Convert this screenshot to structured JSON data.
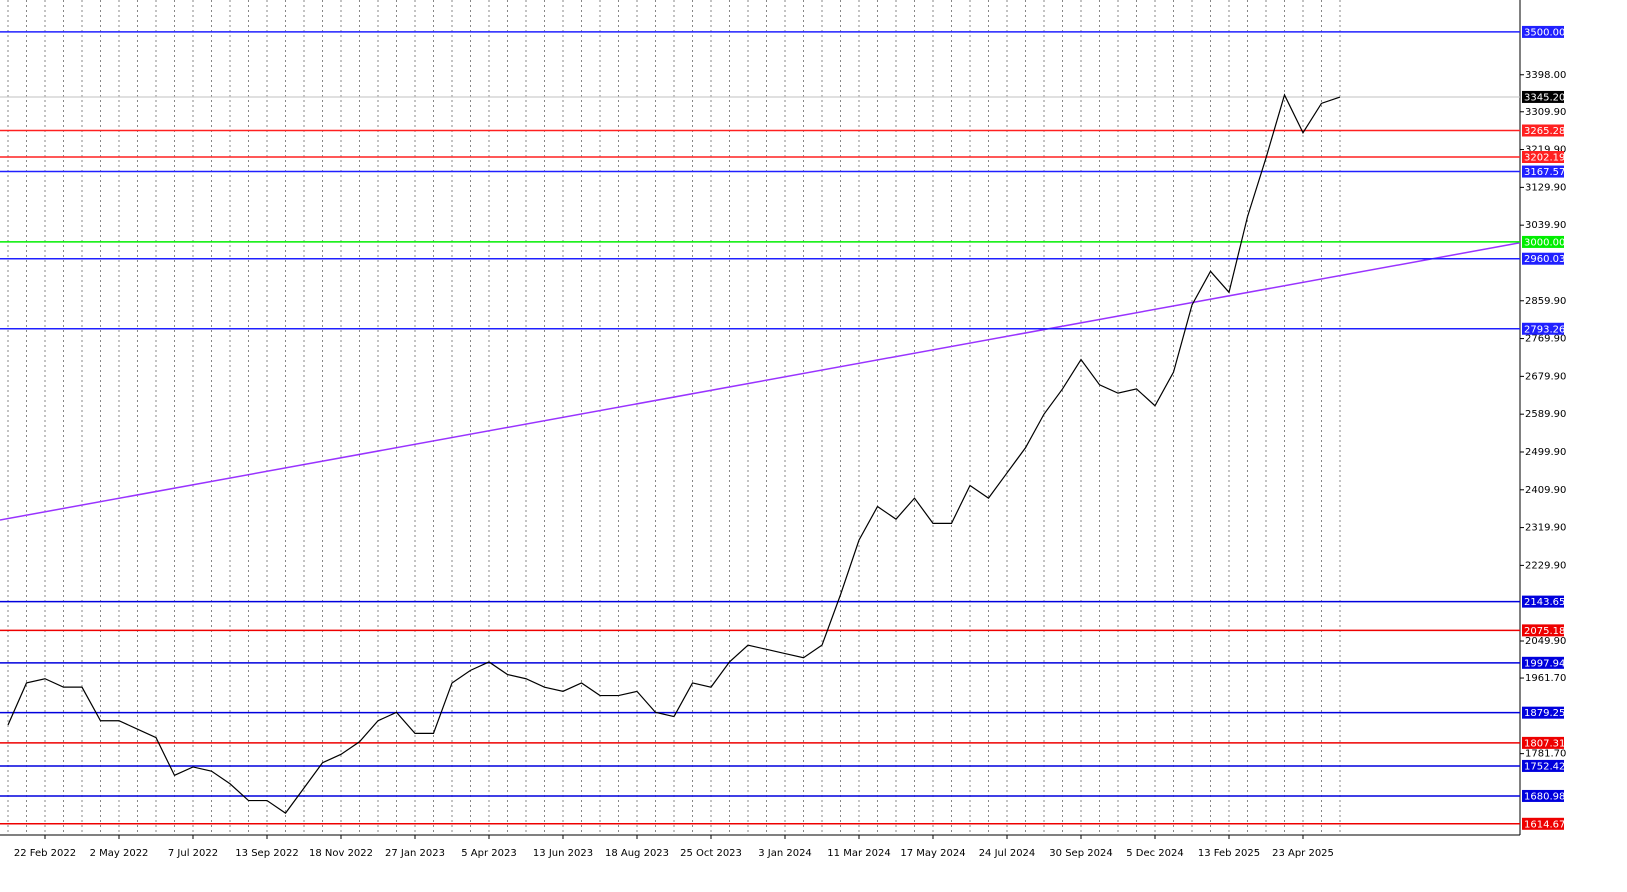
{
  "chart_data": {
    "type": "line",
    "categories": [
      null,
      null,
      "22 Feb 2022",
      null,
      null,
      null,
      "2 May 2022",
      null,
      null,
      null,
      "7 Jul 2022",
      null,
      null,
      null,
      "13 Sep 2022",
      null,
      null,
      null,
      "18 Nov 2022",
      null,
      null,
      null,
      "27 Jan 2023",
      null,
      null,
      null,
      "5 Apr 2023",
      null,
      null,
      null,
      "13 Jun 2023",
      null,
      null,
      null,
      "18 Aug 2023",
      null,
      null,
      null,
      "25 Oct 2023",
      null,
      null,
      null,
      "3 Jan 2024",
      null,
      null,
      null,
      "11 Mar 2024",
      null,
      null,
      null,
      "17 May 2024",
      null,
      null,
      null,
      "24 Jul 2024",
      null,
      null,
      null,
      "30 Sep 2024",
      null,
      null,
      null,
      "5 Dec 2024",
      null,
      null,
      null,
      "13 Feb 2025",
      null,
      null,
      null,
      "23 Apr 2025",
      null,
      null
    ],
    "series": [
      {
        "color": "#000000",
        "values": [
          1850,
          1950,
          1960,
          1940,
          1940,
          1860,
          1860,
          1840,
          1820,
          1730,
          1750,
          1740,
          1710,
          1670,
          1670,
          1640,
          1700,
          1760,
          1780,
          1810,
          1860,
          1880,
          1830,
          1830,
          1950,
          1980,
          2000,
          1970,
          1960,
          1940,
          1930,
          1950,
          1920,
          1920,
          1930,
          1880,
          1870,
          1950,
          1940,
          2000,
          2040,
          2030,
          2020,
          2010,
          2040,
          2160,
          2290,
          2370,
          2340,
          2390,
          2330,
          2330,
          2420,
          2390,
          2450,
          2510,
          2590,
          2650,
          2720,
          2660,
          2640,
          2650,
          2610,
          2690,
          2850,
          2930,
          2880,
          3060,
          3200,
          3350,
          3260,
          3330,
          3345
        ]
      }
    ],
    "ylim": [
      1588,
      3576
    ],
    "yticks": [
      {
        "value": 3398,
        "label": "3398.00"
      },
      {
        "value": 3309.9,
        "label": "3309.90"
      },
      {
        "value": 3219.9,
        "label": "3219.90"
      },
      {
        "value": 3129.9,
        "label": "3129.90"
      },
      {
        "value": 3039.9,
        "label": "3039.90"
      },
      {
        "value": 2859.9,
        "label": "2859.90"
      },
      {
        "value": 2769.9,
        "label": "2769.90"
      },
      {
        "value": 2679.9,
        "label": "2679.90"
      },
      {
        "value": 2589.9,
        "label": "2589.90"
      },
      {
        "value": 2499.9,
        "label": "2499.90"
      },
      {
        "value": 2409.9,
        "label": "2409.90"
      },
      {
        "value": 2319.9,
        "label": "2319.90"
      },
      {
        "value": 2229.9,
        "label": "2229.90"
      },
      {
        "value": 2049.9,
        "label": "2049.90"
      },
      {
        "value": 1961.7,
        "label": "1961.70"
      },
      {
        "value": 1781.7,
        "label": "1781.70"
      }
    ],
    "levels": [
      {
        "value": 3500,
        "label": "3500.00",
        "color": "#2020ff"
      },
      {
        "value": 3345.2,
        "label": "3345.20",
        "color": "#000000",
        "line_color": "#c0c0c0"
      },
      {
        "value": 3265.28,
        "label": "3265.28",
        "color": "#ff2020"
      },
      {
        "value": 3202.19,
        "label": "3202.19",
        "color": "#ff2020"
      },
      {
        "value": 3167.57,
        "label": "3167.57",
        "color": "#2020ff"
      },
      {
        "value": 3000,
        "label": "3000.00",
        "color": "#00ee00"
      },
      {
        "value": 2960.03,
        "label": "2960.03",
        "color": "#2020ff"
      },
      {
        "value": 2793.26,
        "label": "2793.26",
        "color": "#2020ff"
      },
      {
        "value": 2143.65,
        "label": "2143.65",
        "color": "#0000dd"
      },
      {
        "value": 2075.18,
        "label": "2075.18",
        "color": "#ee0000"
      },
      {
        "value": 1997.94,
        "label": "1997.94",
        "color": "#0000dd"
      },
      {
        "value": 1879.25,
        "label": "1879.25",
        "color": "#0000dd"
      },
      {
        "value": 1807.31,
        "label": "1807.31",
        "color": "#ee0000"
      },
      {
        "value": 1752.42,
        "label": "1752.42",
        "color": "#0000dd"
      },
      {
        "value": 1680.98,
        "label": "1680.98",
        "color": "#0000dd"
      },
      {
        "value": 1614.67,
        "label": "1614.67",
        "color": "#ee0000"
      }
    ],
    "trendline": {
      "values": [
        2338,
        2998
      ],
      "color": "#9933ff"
    },
    "grid": true
  }
}
